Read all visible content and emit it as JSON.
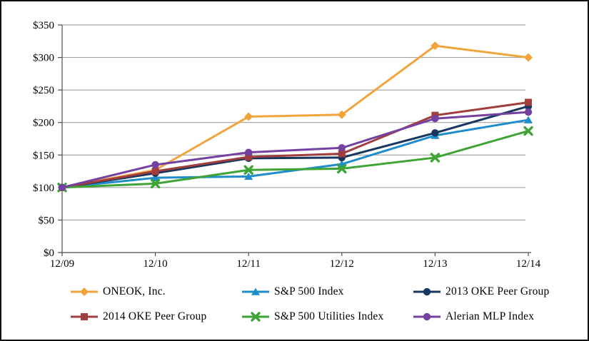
{
  "window": {
    "background": "#ffffff",
    "border_color": "#101010"
  },
  "chart_data": {
    "type": "line",
    "title": "",
    "xlabel": "",
    "ylabel": "",
    "x_labels": [
      "12/09",
      "12/10",
      "12/11",
      "12/12",
      "12/13",
      "12/14"
    ],
    "y_tick_labels": [
      "$0",
      "$50",
      "$100",
      "$150",
      "$200",
      "$250",
      "$300",
      "$350"
    ],
    "y_tick_values": [
      0,
      50,
      100,
      150,
      200,
      250,
      300,
      350
    ],
    "ylim": [
      0,
      350
    ],
    "grid": true,
    "grid_color": "#969696",
    "axis_color": "#4d4d4d",
    "legend_position": "bottom",
    "series": [
      {
        "name": "ONEOK, Inc.",
        "color": "#F2A33C",
        "marker": "diamond",
        "values": [
          100,
          127,
          209,
          212,
          318,
          300
        ]
      },
      {
        "name": "S&P 500 Index",
        "color": "#1F8CCC",
        "marker": "triangle",
        "values": [
          100,
          115,
          117,
          136,
          180,
          204
        ]
      },
      {
        "name": "2013 OKE Peer Group",
        "color": "#17375E",
        "marker": "circle",
        "values": [
          100,
          122,
          145,
          146,
          184,
          225
        ]
      },
      {
        "name": "2014 OKE Peer Group",
        "color": "#A23D3D",
        "marker": "square",
        "values": [
          100,
          125,
          147,
          152,
          211,
          231
        ]
      },
      {
        "name": "S&P 500 Utilities Index",
        "color": "#3FA435",
        "marker": "x",
        "values": [
          100,
          106,
          127,
          129,
          146,
          187
        ]
      },
      {
        "name": "Alerian MLP Index",
        "color": "#7441A1",
        "marker": "circle",
        "values": [
          100,
          135,
          154,
          161,
          206,
          216
        ]
      }
    ]
  }
}
